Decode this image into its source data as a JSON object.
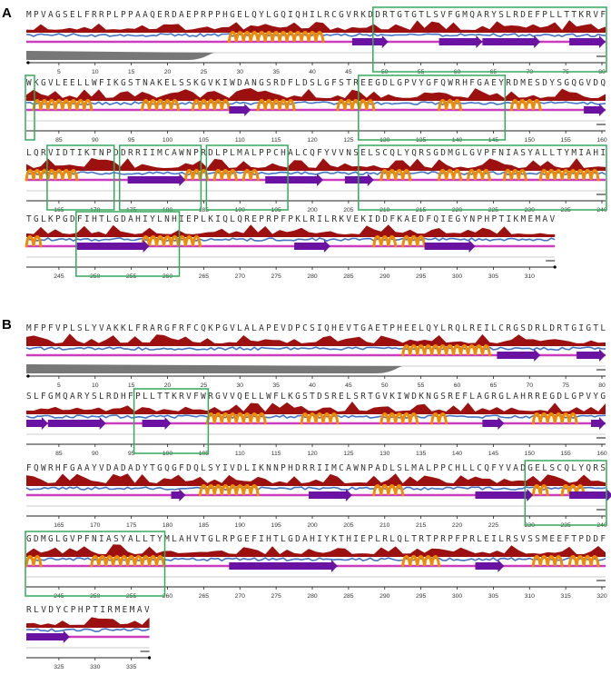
{
  "panels": [
    {
      "label": "A",
      "rows": [
        {
          "seq": "MPVAGSELFRRPLPPAAQERDAEPRPPHGELQYLGQIQHILRCGVRKDDRTGTGTLSVFGMQARYSLRDEFPLLTTKRVF",
          "ticks": [
            "5",
            "10",
            "15",
            "20",
            "25",
            "30",
            "35",
            "40",
            "45",
            "50",
            "55",
            "60",
            "65",
            "70",
            "75",
            "80"
          ],
          "helices": [
            [
              29,
              41
            ]
          ],
          "strands": [
            [
              46,
              50
            ],
            [
              58,
              63
            ],
            [
              64,
              71
            ],
            [
              76,
              80
            ]
          ],
          "disorder_end": 26,
          "boxes": [
            [
              49,
              81
            ]
          ]
        },
        {
          "seq": "WKGVLEELLWFIKGSTNAKELSSKGVKIWDANGSRDFLDSLGFSTREEGDLGPVYGFQWRHFGAEYRDMESDYSGQGVDQ",
          "ticks": [
            "85",
            "90",
            "95",
            "100",
            "105",
            "110",
            "115",
            "120",
            "125",
            "130",
            "135",
            "140",
            "145",
            "150",
            "155",
            "160"
          ],
          "helices": [
            [
              82,
              89
            ],
            [
              97,
              101
            ],
            [
              104,
              108
            ],
            [
              113,
              117
            ],
            [
              124,
              128
            ],
            [
              138,
              140
            ],
            [
              148,
              151
            ]
          ],
          "strands": [
            [
              109,
              111
            ],
            [
              158,
              160
            ]
          ],
          "disorder_end": 0,
          "boxes": [
            [
              81,
              82
            ],
            [
              127,
              147
            ]
          ]
        },
        {
          "seq": "LQRVIDTIKTNPDDRRIIMCAWNPRDLPLMALPPCHALCQFYVVNSELSCQLYQRSGDMGLGVPFNIASYALLTYMIAHI",
          "ticks": [
            "165",
            "170",
            "175",
            "180",
            "185",
            "190",
            "195",
            "200",
            "205",
            "210",
            "215",
            "220",
            "225",
            "230",
            "235",
            "240"
          ],
          "helices": [
            [
              161,
              167
            ],
            [
              183,
              185
            ],
            [
              187,
              189
            ],
            [
              191,
              192
            ],
            [
              210,
              213
            ],
            [
              218,
              220
            ],
            [
              222,
              224
            ],
            [
              227,
              229
            ],
            [
              232,
              239
            ]
          ],
          "strands": [
            [
              175,
              182
            ],
            [
              194,
              201
            ],
            [
              205,
              208
            ]
          ],
          "disorder_end": 0,
          "boxes": [
            [
              164,
              173
            ],
            [
              174,
              185
            ],
            [
              186,
              197
            ],
            [
              207,
              241
            ]
          ]
        },
        {
          "seq": "TGLKPGDFIHTLGDAHIYLNHIEPLKIQLQREPRPFPKLRILRKVEKIDDFKAEDFQIEGYNPHPTIKMEMAV",
          "ticks": [
            "245",
            "250",
            "255",
            "260",
            "265",
            "270",
            "275",
            "280",
            "285",
            "290",
            "295",
            "300",
            "305",
            "310"
          ],
          "helices": [
            [
              241,
              242
            ],
            [
              257,
              264
            ],
            [
              289,
              291
            ],
            [
              293,
              295
            ]
          ],
          "strands": [
            [
              248,
              257
            ],
            [
              278,
              282
            ],
            [
              296,
              302
            ]
          ],
          "disorder_end": 0,
          "boxes": [
            [
              248,
              262
            ]
          ]
        }
      ]
    },
    {
      "label": "B",
      "rows": [
        {
          "seq": "MFPFVPLSLYVAKKLFRARGFRFCQKPGVLALAPEVDPCSIQHEVTGAETPHEELQYLRQLREILCRGSDRLDRTGIGTL",
          "ticks": [
            "5",
            "10",
            "15",
            "20",
            "25",
            "30",
            "35",
            "40",
            "45",
            "50",
            "55",
            "60",
            "65",
            "70",
            "75",
            "80"
          ],
          "helices": [
            [
              53,
              64
            ]
          ],
          "strands": [
            [
              66,
              71
            ],
            [
              77,
              80
            ]
          ],
          "disorder_end": 52,
          "boxes": []
        },
        {
          "seq": "SLFGMQARYSLRDHFPLLTTKRVFWRGVVQELLWFLKGSTDSRELSRTGVKIWDKNGSREFLAGRGLAHRREGDLGPVYG",
          "ticks": [
            "85",
            "90",
            "95",
            "100",
            "105",
            "110",
            "115",
            "120",
            "125",
            "130",
            "135",
            "140",
            "145",
            "150",
            "155",
            "160"
          ],
          "helices": [
            [
              106,
              113
            ],
            [
              119,
              123
            ],
            [
              130,
              134
            ],
            [
              137,
              138
            ],
            [
              151,
              156
            ]
          ],
          "strands": [
            [
              81,
              83
            ],
            [
              84,
              91
            ],
            [
              97,
              100
            ],
            [
              144,
              146
            ],
            [
              159,
              160
            ]
          ],
          "disorder_end": 0,
          "boxes": [
            [
              96,
              106
            ]
          ]
        },
        {
          "seq": "FQWRHFGAAYVDADADYTGQGFDQLSYIVDLIKNNPHDRRIIMCAWNPADLSLMALPPCHLLCQFYVADGELSCQLYQRS",
          "ticks": [
            "165",
            "170",
            "175",
            "180",
            "185",
            "190",
            "195",
            "200",
            "205",
            "210",
            "215",
            "220",
            "225",
            "230",
            "235",
            "240"
          ],
          "helices": [
            [
              185,
              192
            ],
            [
              209,
              212
            ],
            [
              231,
              232
            ],
            [
              235,
              237
            ]
          ],
          "strands": [
            [
              181,
              182
            ],
            [
              200,
              205
            ],
            [
              223,
              230
            ],
            [
              236,
              241
            ]
          ],
          "disorder_end": 0,
          "boxes": [
            [
              230,
              241
            ]
          ]
        },
        {
          "seq": "GDMGLGVPFNIASYALLTYMLAHVTGLRPGEFIHTLGDAHIYKTHIEPLRLQLTRTPRPFPRLEILRSVSSMEEFTPDDF",
          "ticks": [
            "245",
            "250",
            "255",
            "260",
            "265",
            "270",
            "275",
            "280",
            "285",
            "290",
            "295",
            "300",
            "305",
            "310",
            "315",
            "320"
          ],
          "helices": [
            [
              241,
              242
            ],
            [
              250,
              259
            ],
            [
              293,
              297
            ],
            [
              311,
              314
            ],
            [
              316,
              319
            ]
          ],
          "strands": [
            [
              269,
              283
            ],
            [
              303,
              306
            ]
          ],
          "disorder_end": 0,
          "boxes": [
            [
              241,
              260
            ]
          ]
        },
        {
          "seq": "RLVDYCPHPTIRMEMAV",
          "ticks": [
            "325",
            "330",
            "335"
          ],
          "helices": [],
          "strands": [
            [
              321,
              326
            ]
          ],
          "disorder_end": 0,
          "boxes": []
        }
      ]
    }
  ],
  "colors": {
    "box": "#37a85a",
    "helix": "#f08a00",
    "strand": "#6a13a3",
    "coil": "#cc3cbf",
    "conservation": "#9c1010",
    "surface": "#4472c4",
    "disorder": "#777777"
  }
}
